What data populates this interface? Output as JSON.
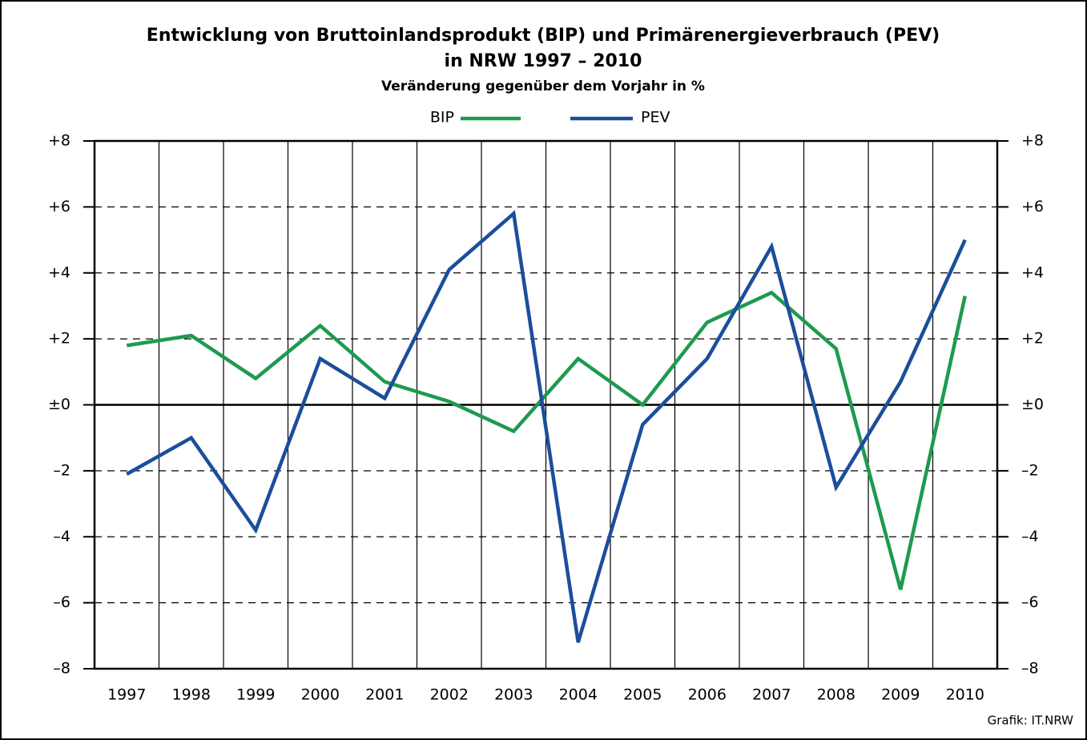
{
  "chart_data": {
    "type": "line",
    "title": [
      "Entwicklung von Bruttoinlandsprodukt (BIP) und Primärenergieverbrauch (PEV)",
      "in NRW 1997 – 2010"
    ],
    "subtitle": "Veränderung gegenüber dem Vorjahr in %",
    "source": "Grafik: IT.NRW",
    "categories": [
      "1997",
      "1998",
      "1999",
      "2000",
      "2001",
      "2002",
      "2003",
      "2004",
      "2005",
      "2006",
      "2007",
      "2008",
      "2009",
      "2010"
    ],
    "series": [
      {
        "name": "BIP",
        "color": "#1e9a50",
        "values": [
          1.8,
          2.1,
          0.8,
          2.4,
          0.7,
          0.1,
          -0.8,
          1.4,
          0.0,
          2.5,
          3.4,
          1.7,
          -5.6,
          3.3
        ]
      },
      {
        "name": "PEV",
        "color": "#1b4e9b",
        "values": [
          -2.1,
          -1.0,
          -3.8,
          1.4,
          0.2,
          4.1,
          5.8,
          -7.2,
          -0.6,
          1.4,
          4.8,
          -2.5,
          0.7,
          5.0
        ]
      }
    ],
    "ylim": [
      -8,
      8
    ],
    "yticks": [
      {
        "value": 8,
        "label": "+8"
      },
      {
        "value": 6,
        "label": "+6"
      },
      {
        "value": 4,
        "label": "+4"
      },
      {
        "value": 2,
        "label": "+2"
      },
      {
        "value": 0,
        "label": "±0"
      },
      {
        "value": -2,
        "label": "–2"
      },
      {
        "value": -4,
        "label": "–4"
      },
      {
        "value": -6,
        "label": "–6"
      },
      {
        "value": -8,
        "label": "–8"
      }
    ],
    "y2lim": [
      -8,
      8
    ],
    "y2ticks": [
      {
        "value": 8,
        "label": "+8"
      },
      {
        "value": 6,
        "label": "+6"
      },
      {
        "value": 4,
        "label": "+4"
      },
      {
        "value": 2,
        "label": "+2"
      },
      {
        "value": 0,
        "label": "±0"
      },
      {
        "value": -2,
        "label": "–2"
      },
      {
        "value": -4,
        "label": "–4"
      },
      {
        "value": -6,
        "label": "–6"
      },
      {
        "value": -8,
        "label": "–8"
      }
    ],
    "grid": true
  }
}
